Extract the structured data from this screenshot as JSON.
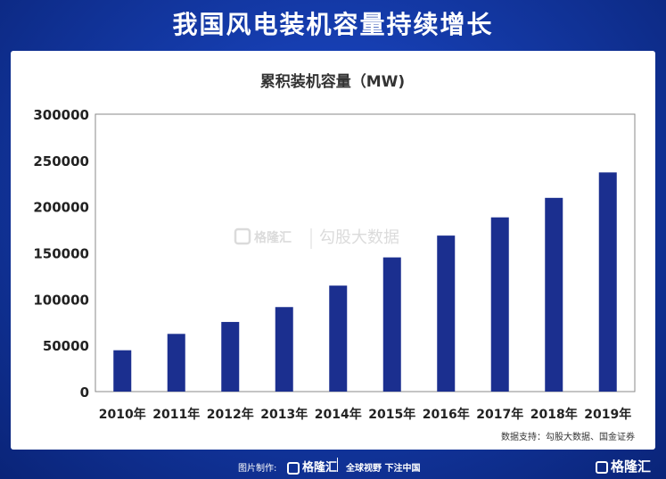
{
  "header": {
    "title": "我国风电装机容量持续增长"
  },
  "chart_data": {
    "type": "bar",
    "title": "累积装机容量（MW)",
    "categories": [
      "2010年",
      "2011年",
      "2012年",
      "2013年",
      "2014年",
      "2015年",
      "2016年",
      "2017年",
      "2018年",
      "2019年"
    ],
    "values": [
      44700,
      62400,
      75300,
      91400,
      114600,
      145100,
      168700,
      188400,
      209500,
      237000
    ],
    "ylim": [
      0,
      300000
    ],
    "yticks": [
      0,
      50000,
      100000,
      150000,
      200000,
      250000,
      300000
    ],
    "bar_color": "#1b2f8f",
    "grid": false,
    "source": "数据支持：勾股大数据、国金证券"
  },
  "watermark": {
    "brand": "格隆汇",
    "text": "勾股大数据"
  },
  "footer": {
    "made_by": "图片制作:",
    "logo": "格隆汇",
    "slogan": "全球视野 下注中国",
    "corner_logo": "格隆汇"
  }
}
